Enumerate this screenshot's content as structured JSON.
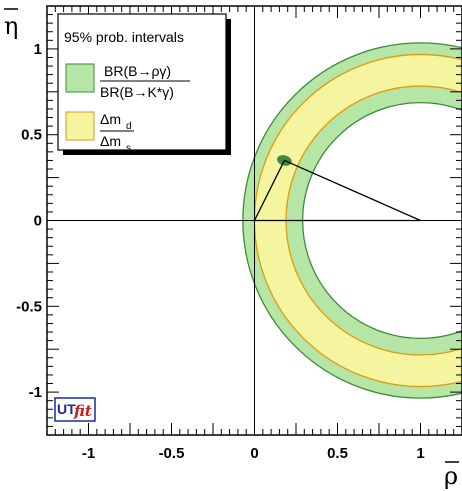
{
  "chart_data": {
    "type": "contour",
    "xlabel": "ρ",
    "ylabel": "η",
    "xlim": [
      -1.25,
      1.25
    ],
    "ylim": [
      -1.25,
      1.25
    ],
    "x_ticks": [
      "-1",
      "-0.5",
      "0",
      "0.5",
      "1"
    ],
    "y_ticks": [
      "-1",
      "-0.5",
      "0",
      "0.5",
      "1"
    ],
    "legend": {
      "title": "95% prob. intervals",
      "placement": "top-left",
      "entries": [
        {
          "name": "BR(B→ργ)/BR(B→K*γ)",
          "numerator": "BR(B→ργ)",
          "denominator": "BR(B→K*γ)",
          "color": "#b6e6a6"
        },
        {
          "name": "Δmd/Δms",
          "numerator": "Δm",
          "numerator_sub": "d",
          "denominator": "Δm",
          "denominator_sub": "s",
          "color": "#f5f5a0"
        }
      ]
    },
    "rings": [
      {
        "name": "BR(B→ργ)/BR(B→K*γ)",
        "center": [
          1,
          0
        ],
        "r_inner": 0.71,
        "r_outer": 1.07,
        "fill": "#b6e6a6",
        "stroke": "#3d8a3d"
      },
      {
        "name": "Δmd/Δms",
        "center": [
          1,
          0
        ],
        "r_inner": 0.81,
        "r_outer": 1.0,
        "fill": "#f5f5a0",
        "stroke": "#e09a10"
      }
    ],
    "best_fit_region": {
      "center": [
        0.18,
        0.35
      ],
      "rx": 0.045,
      "ry": 0.03,
      "fill": "#3e8a3e"
    },
    "triangle": [
      [
        0,
        0
      ],
      [
        1,
        0
      ],
      [
        0.18,
        0.35
      ]
    ],
    "logo": {
      "ut": "UT",
      "fit": "fit"
    }
  }
}
